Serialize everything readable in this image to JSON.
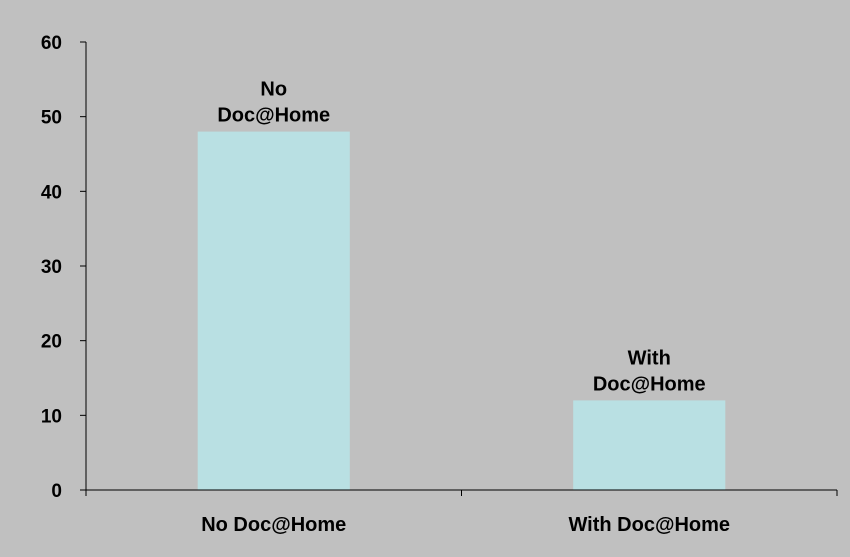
{
  "colors": {
    "background": "#c0c0c0",
    "bar": "#b9e0e3",
    "axis": "#000000",
    "text": "#000000"
  },
  "chart_data": {
    "type": "bar",
    "categories": [
      "No Doc@Home",
      "With Doc@Home"
    ],
    "values": [
      48,
      12
    ],
    "data_labels": [
      [
        "No",
        "Doc@Home"
      ],
      [
        "With",
        "Doc@Home"
      ]
    ],
    "y_ticks": [
      "0",
      "10",
      "20",
      "30",
      "40",
      "50",
      "60"
    ],
    "ylim": [
      0,
      60
    ],
    "title": "",
    "xlabel": "",
    "ylabel": "",
    "grid": false,
    "legend": "none"
  }
}
